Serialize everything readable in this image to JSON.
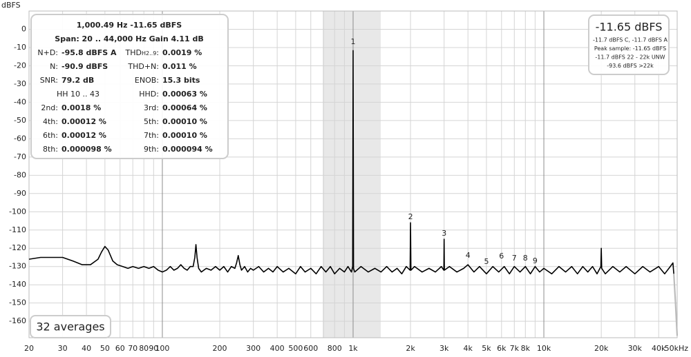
{
  "chart_data": {
    "type": "line",
    "y_axis_label": "dBFS",
    "xlog": true,
    "grid": true,
    "xlim": [
      20,
      50000
    ],
    "ylim": [
      -169,
      10
    ],
    "xticks": [
      20,
      30,
      40,
      50,
      60,
      70,
      80,
      90,
      100,
      200,
      300,
      400,
      500,
      600,
      800,
      {
        "value": 1000,
        "label": "1k"
      },
      {
        "value": 2000,
        "label": "2k"
      },
      {
        "value": 3000,
        "label": "3k"
      },
      {
        "value": 4000,
        "label": "4k"
      },
      {
        "value": 5000,
        "label": "5k"
      },
      {
        "value": 6000,
        "label": "6k"
      },
      {
        "value": 7000,
        "label": "7k"
      },
      {
        "value": 8000,
        "label": "8k"
      },
      {
        "value": 10000,
        "label": "10k"
      },
      {
        "value": 20000,
        "label": "20k"
      },
      {
        "value": 30000,
        "label": "30k"
      },
      {
        "value": 40000,
        "label": "40k"
      },
      {
        "value": 50000,
        "label": "50kHz"
      }
    ],
    "xminor": [
      700,
      900,
      9000
    ],
    "yticks": [
      0,
      -10,
      -20,
      -30,
      -40,
      -50,
      -60,
      -70,
      -80,
      -90,
      -100,
      -110,
      -120,
      -130,
      -140,
      -150,
      -160
    ],
    "shaded_range": [
      693,
      1396
    ],
    "series": [
      {
        "color": "#000000",
        "x": [
          20,
          23,
          26,
          30,
          34,
          38,
          42,
          46,
          48,
          50,
          52,
          55,
          58,
          62,
          66,
          70,
          75,
          80,
          85,
          90,
          95,
          100,
          105,
          110,
          115,
          120,
          125,
          130,
          135,
          140,
          145,
          148,
          150,
          152,
          155,
          160,
          170,
          180,
          190,
          200,
          210,
          220,
          230,
          240,
          245,
          250,
          255,
          260,
          270,
          280,
          290,
          300,
          320,
          340,
          360,
          380,
          400,
          430,
          460,
          500,
          530,
          560,
          600,
          640,
          680,
          720,
          760,
          800,
          850,
          900,
          940,
          980,
          995,
          1000,
          1005,
          1020,
          1100,
          1200,
          1300,
          1400,
          1500,
          1600,
          1700,
          1800,
          1900,
          1990,
          2000,
          2010,
          2100,
          2300,
          2500,
          2700,
          2900,
          2990,
          3000,
          3010,
          3200,
          3500,
          3800,
          4000,
          4300,
          4600,
          5000,
          5400,
          5800,
          6200,
          6600,
          7000,
          7500,
          8000,
          8500,
          9000,
          9500,
          10000,
          11000,
          12000,
          13000,
          14000,
          15000,
          16000,
          17000,
          18000,
          19000,
          19900,
          20000,
          20100,
          21000,
          23000,
          25000,
          27000,
          30000,
          33000,
          36000,
          40000,
          43000,
          46000,
          47500,
          48000
        ],
        "values": [
          -126,
          -125,
          -125,
          -125,
          -127,
          -129,
          -129,
          -126,
          -122,
          -119,
          -121,
          -127,
          -129,
          -130,
          -131,
          -130,
          -131,
          -130,
          -131,
          -130,
          -132,
          -133,
          -132,
          -130,
          -132,
          -131,
          -129,
          -131,
          -132,
          -130,
          -130,
          -125,
          -118,
          -125,
          -131,
          -133,
          -131,
          -132,
          -130,
          -132,
          -130,
          -133,
          -130,
          -131,
          -128,
          -124,
          -129,
          -132,
          -130,
          -133,
          -131,
          -132,
          -130,
          -133,
          -131,
          -133,
          -130,
          -133,
          -131,
          -134,
          -130,
          -133,
          -131,
          -134,
          -130,
          -133,
          -130,
          -134,
          -131,
          -133,
          -130,
          -133,
          -130,
          -11.65,
          -131,
          -133,
          -130,
          -133,
          -131,
          -133,
          -130,
          -133,
          -131,
          -134,
          -130,
          -132,
          -106,
          -132,
          -130,
          -133,
          -131,
          -133,
          -130,
          -132,
          -115,
          -132,
          -130,
          -133,
          -131,
          -129,
          -133,
          -130,
          -134,
          -130,
          -133,
          -130,
          -134,
          -130,
          -133,
          -130,
          -134,
          -130,
          -133,
          -131,
          -134,
          -130,
          -133,
          -130,
          -134,
          -130,
          -133,
          -130,
          -134,
          -130,
          -120,
          -131,
          -134,
          -130,
          -133,
          -130,
          -134,
          -130,
          -133,
          -130,
          -134,
          -130,
          -128,
          -134
        ]
      },
      {
        "color": "#bbbbbb",
        "x": [
          48000,
          49000,
          50000
        ],
        "values": [
          -134,
          -150,
          -168
        ]
      }
    ],
    "harmonics": {
      "labels": [
        "1",
        "2",
        "3",
        "4",
        "5",
        "6",
        "7",
        "8",
        "9"
      ],
      "x": [
        1000,
        2000,
        3000,
        4000,
        5000,
        6000,
        7000,
        8000,
        9000
      ],
      "y": [
        -7,
        -103,
        -112,
        -124,
        -127.5,
        -124.5,
        -125.5,
        -125.5,
        -127
      ]
    },
    "info_panel": {
      "line1": "1,000.49 Hz  -11.65 dBFS",
      "line2": "Span: 20 .. 44,000 Hz  Gain 4.11 dB",
      "rows": [
        [
          {
            "label": "N+D:",
            "value": "-95.8 dBFS A"
          },
          {
            "label": "THD",
            "label_sub": "H2..9",
            "label_end": ":",
            "value": "0.0019 %"
          }
        ],
        [
          {
            "label": "N:",
            "value": "-90.9 dBFS"
          },
          {
            "label": "THD+N:",
            "value": "0.011 %"
          }
        ],
        [
          {
            "label": "SNR:",
            "value": "79.2 dB"
          },
          {
            "label": "ENOB:",
            "value": "15.3 bits"
          }
        ],
        [
          {
            "label": "HH 10 .. 43"
          },
          {
            "label": "HHD:",
            "value": "0.00063 %"
          }
        ],
        [
          {
            "label": "2nd:",
            "value": "0.0018 %"
          },
          {
            "label": "3rd:",
            "value": "0.00064 %"
          }
        ],
        [
          {
            "label": "4th:",
            "value": "0.00012 %"
          },
          {
            "label": "5th:",
            "value": "0.00010 %"
          }
        ],
        [
          {
            "label": "6th:",
            "value": "0.00012 %"
          },
          {
            "label": "7th:",
            "value": "0.00010 %"
          }
        ],
        [
          {
            "label": "8th:",
            "value": "0.000098 %"
          },
          {
            "label": "9th:",
            "value": "0.000094 %"
          }
        ]
      ]
    },
    "level_panel": {
      "main": "-11.65 dBFS",
      "lines": [
        "-11.7 dBFS C, -11.7 dBFS A",
        "Peak sample: -11.65 dBFS",
        "-11.7 dBFS 22 - 22k UNW",
        "-93.6 dBFS >22k"
      ]
    },
    "averages": "32 averages"
  }
}
